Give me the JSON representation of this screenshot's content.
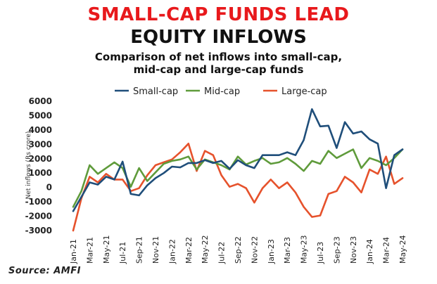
{
  "header": {
    "title_line1": "SMALL-CAP FUNDS LEAD",
    "title_line2": "EQUITY INFLOWS",
    "subtitle_line1": "Comparison of net inflows into small-cap,",
    "subtitle_line2": "mid-cap and large-cap funds"
  },
  "source": "Source: AMFI",
  "colors": {
    "title_red": "#e8191c",
    "small_cap": "#1f4e7a",
    "mid_cap": "#5f9b3b",
    "large_cap": "#e6522c"
  },
  "chart_data": {
    "type": "line",
    "title": "SMALL-CAP FUNDS LEAD EQUITY INFLOWS",
    "ylabel": "Net inflows (Rs crore)",
    "xlabel": "",
    "ylim": [
      -3000,
      6000
    ],
    "yticks": [
      "6000",
      "5000",
      "4000",
      "3000",
      "2000",
      "1000",
      "0",
      "-1000",
      "-2000",
      "-3000"
    ],
    "ytick_values": [
      6000,
      5000,
      4000,
      3000,
      2000,
      1000,
      0,
      -1000,
      -2000,
      -3000
    ],
    "x": [
      "Jan-21",
      "Feb-21",
      "Mar-21",
      "Apr-21",
      "May-21",
      "Jun-21",
      "Jul-21",
      "Aug-21",
      "Sep-21",
      "Oct-21",
      "Nov-21",
      "Dec-21",
      "Jan-22",
      "Feb-22",
      "Mar-22",
      "Apr-22",
      "May-22",
      "Jun-22",
      "Jul-22",
      "Aug-22",
      "Sep-22",
      "Oct-22",
      "Nov-22",
      "Dec-22",
      "Jan-23",
      "Feb-23",
      "Mar-23",
      "Apr-23",
      "May-23",
      "Jun-23",
      "Jul-23",
      "Aug-23",
      "Sep-23",
      "Oct-23",
      "Nov-23",
      "Dec-23",
      "Jan-24",
      "Feb-24",
      "Mar-24",
      "Apr-24",
      "May-24"
    ],
    "xtick_labels": [
      "Jan-21",
      "Mar-21",
      "May-21",
      "Jul-21",
      "Sep-21",
      "Nov-21",
      "Jan-22",
      "Mar-22",
      "May-22",
      "Jul-22",
      "Sep-22",
      "Nov-22",
      "Jan-23",
      "Mar-23",
      "May-23",
      "Jul-23",
      "Sep-23",
      "Nov-23",
      "Jan-24",
      "Mar-24",
      "May-24"
    ],
    "legend": {
      "position": "top-center",
      "entries": [
        "Small-cap",
        "Mid-cap",
        "Large-cap"
      ]
    },
    "series": [
      {
        "name": "Small-cap",
        "values": [
          -1700,
          -700,
          300,
          150,
          700,
          500,
          1750,
          -500,
          -600,
          100,
          600,
          950,
          1400,
          1350,
          1650,
          1650,
          1850,
          1650,
          1800,
          1250,
          1850,
          1500,
          1300,
          2200,
          2200,
          2200,
          2400,
          2200,
          3250,
          5400,
          4200,
          4250,
          2700,
          4500,
          3700,
          3850,
          3300,
          3000,
          -100,
          2200,
          2600
        ]
      },
      {
        "name": "Mid-cap",
        "values": [
          -1400,
          -300,
          1500,
          900,
          1300,
          1700,
          1300,
          0,
          1300,
          400,
          1000,
          1600,
          1800,
          1900,
          2100,
          1200,
          1900,
          1700,
          1500,
          1200,
          2100,
          1550,
          1800,
          2000,
          1600,
          1700,
          2000,
          1600,
          1100,
          1800,
          1600,
          2500,
          2000,
          2300,
          2600,
          1300,
          2000,
          1800,
          1500,
          2000,
          2600
        ]
      },
      {
        "name": "Large-cap",
        "values": [
          -3050,
          -800,
          700,
          300,
          900,
          500,
          500,
          -300,
          -100,
          800,
          1500,
          1700,
          1900,
          2400,
          3000,
          1100,
          2500,
          2200,
          800,
          0,
          200,
          -100,
          -1100,
          -100,
          500,
          -100,
          300,
          -400,
          -1400,
          -2100,
          -2000,
          -500,
          -300,
          700,
          300,
          -400,
          1200,
          900,
          2100,
          200,
          600
        ]
      }
    ]
  }
}
